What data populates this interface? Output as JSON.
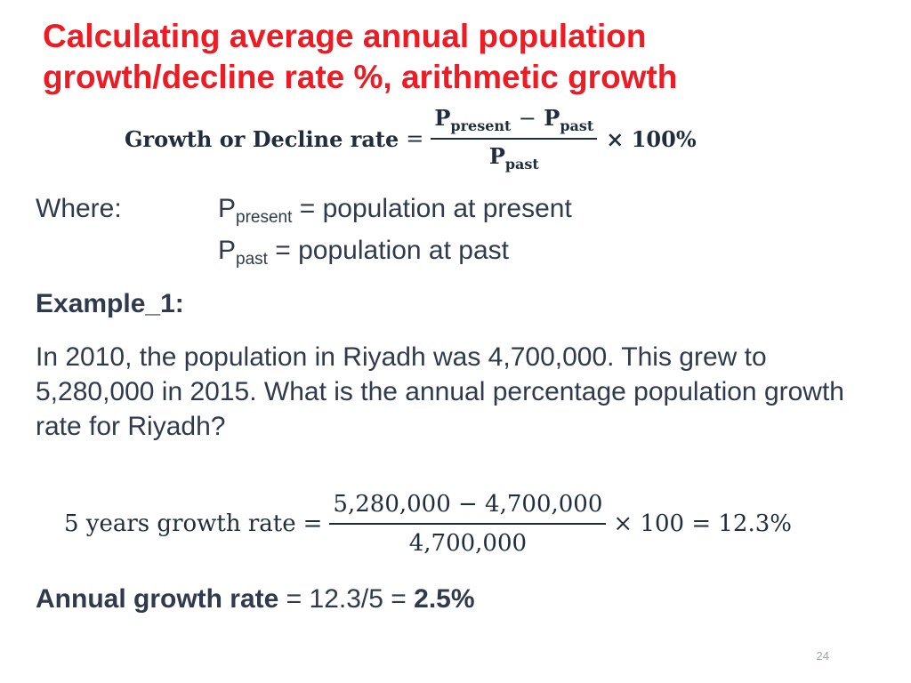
{
  "slide": {
    "title_line1": "Calculating average annual population",
    "title_line2": "growth/decline rate %, arithmetic growth",
    "formula": {
      "lhs": "Growth or Decline rate",
      "equals": "=",
      "p": "P",
      "present_sub": "present",
      "past_sub": "past",
      "minus": "−",
      "times_hundred": "× 100%"
    },
    "where_label": "Where:",
    "definitions": [
      {
        "symbol": "P",
        "sub": "present",
        "text": " = population at present"
      },
      {
        "symbol": "P",
        "sub": "past",
        "text": " = population at past"
      }
    ],
    "example_label": "Example_1:",
    "problem_text": "In 2010, the population in Riyadh was 4,700,000. This grew to 5,280,000 in 2015. What is the annual percentage population growth rate for Riyadh?",
    "example_formula": {
      "lhs": "5 years growth rate",
      "equals": "=",
      "numerator": "5,280,000 − 4,700,000",
      "denominator": "4,700,000",
      "tail": "× 100 = 12.3%"
    },
    "annual": {
      "label": "Annual growth rate",
      "calc": " = 12.3/5 = ",
      "result": "2.5%"
    },
    "page_number": "24"
  }
}
